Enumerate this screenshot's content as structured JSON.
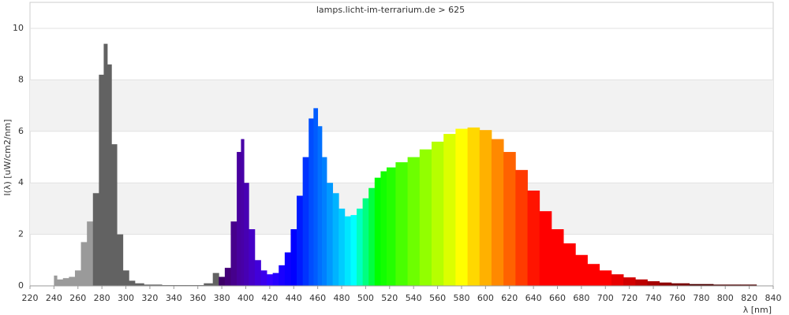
{
  "chart_data": {
    "type": "spectrum",
    "title": "lamps.licht-im-terrarium.de > 625",
    "x_label": "λ [nm]",
    "y_label": "I(λ)  [uW/cm2/nm]",
    "x": [
      240,
      245,
      250,
      255,
      260,
      265,
      270,
      275,
      280,
      283,
      286,
      290,
      295,
      300,
      305,
      310,
      320,
      340,
      360,
      370,
      375,
      380,
      385,
      390,
      395,
      397,
      400,
      405,
      410,
      415,
      420,
      425,
      430,
      435,
      440,
      445,
      450,
      455,
      458,
      462,
      465,
      470,
      475,
      480,
      485,
      490,
      495,
      500,
      505,
      510,
      515,
      520,
      530,
      540,
      550,
      560,
      570,
      580,
      590,
      600,
      610,
      620,
      630,
      640,
      650,
      660,
      670,
      680,
      690,
      700,
      710,
      720,
      730,
      740,
      750,
      760,
      780,
      800,
      825
    ],
    "values": [
      0.4,
      0.25,
      0.3,
      0.35,
      0.6,
      1.7,
      2.5,
      3.6,
      8.2,
      9.4,
      8.6,
      5.5,
      2.0,
      0.6,
      0.2,
      0.1,
      0.05,
      0.03,
      0.03,
      0.1,
      0.5,
      0.35,
      0.7,
      2.5,
      5.2,
      5.7,
      4.0,
      2.2,
      1.0,
      0.6,
      0.45,
      0.5,
      0.8,
      1.3,
      2.2,
      3.5,
      5.0,
      6.5,
      6.9,
      6.2,
      5.0,
      4.0,
      3.6,
      3.0,
      2.7,
      2.75,
      3.0,
      3.4,
      3.8,
      4.2,
      4.45,
      4.6,
      4.8,
      5.0,
      5.3,
      5.6,
      5.9,
      6.1,
      6.15,
      6.05,
      5.7,
      5.2,
      4.5,
      3.7,
      2.9,
      2.2,
      1.65,
      1.2,
      0.85,
      0.6,
      0.45,
      0.33,
      0.25,
      0.18,
      0.13,
      0.1,
      0.07,
      0.05,
      0.05
    ],
    "xlim": [
      220,
      840
    ],
    "ylim": [
      0,
      10
    ],
    "xticks": [
      220,
      240,
      260,
      280,
      300,
      320,
      340,
      360,
      380,
      400,
      420,
      440,
      460,
      480,
      500,
      520,
      540,
      560,
      580,
      600,
      620,
      640,
      660,
      680,
      700,
      720,
      740,
      760,
      780,
      800,
      820,
      840
    ],
    "yticks": [
      0,
      2,
      4,
      6,
      8,
      10
    ],
    "grid": true
  }
}
